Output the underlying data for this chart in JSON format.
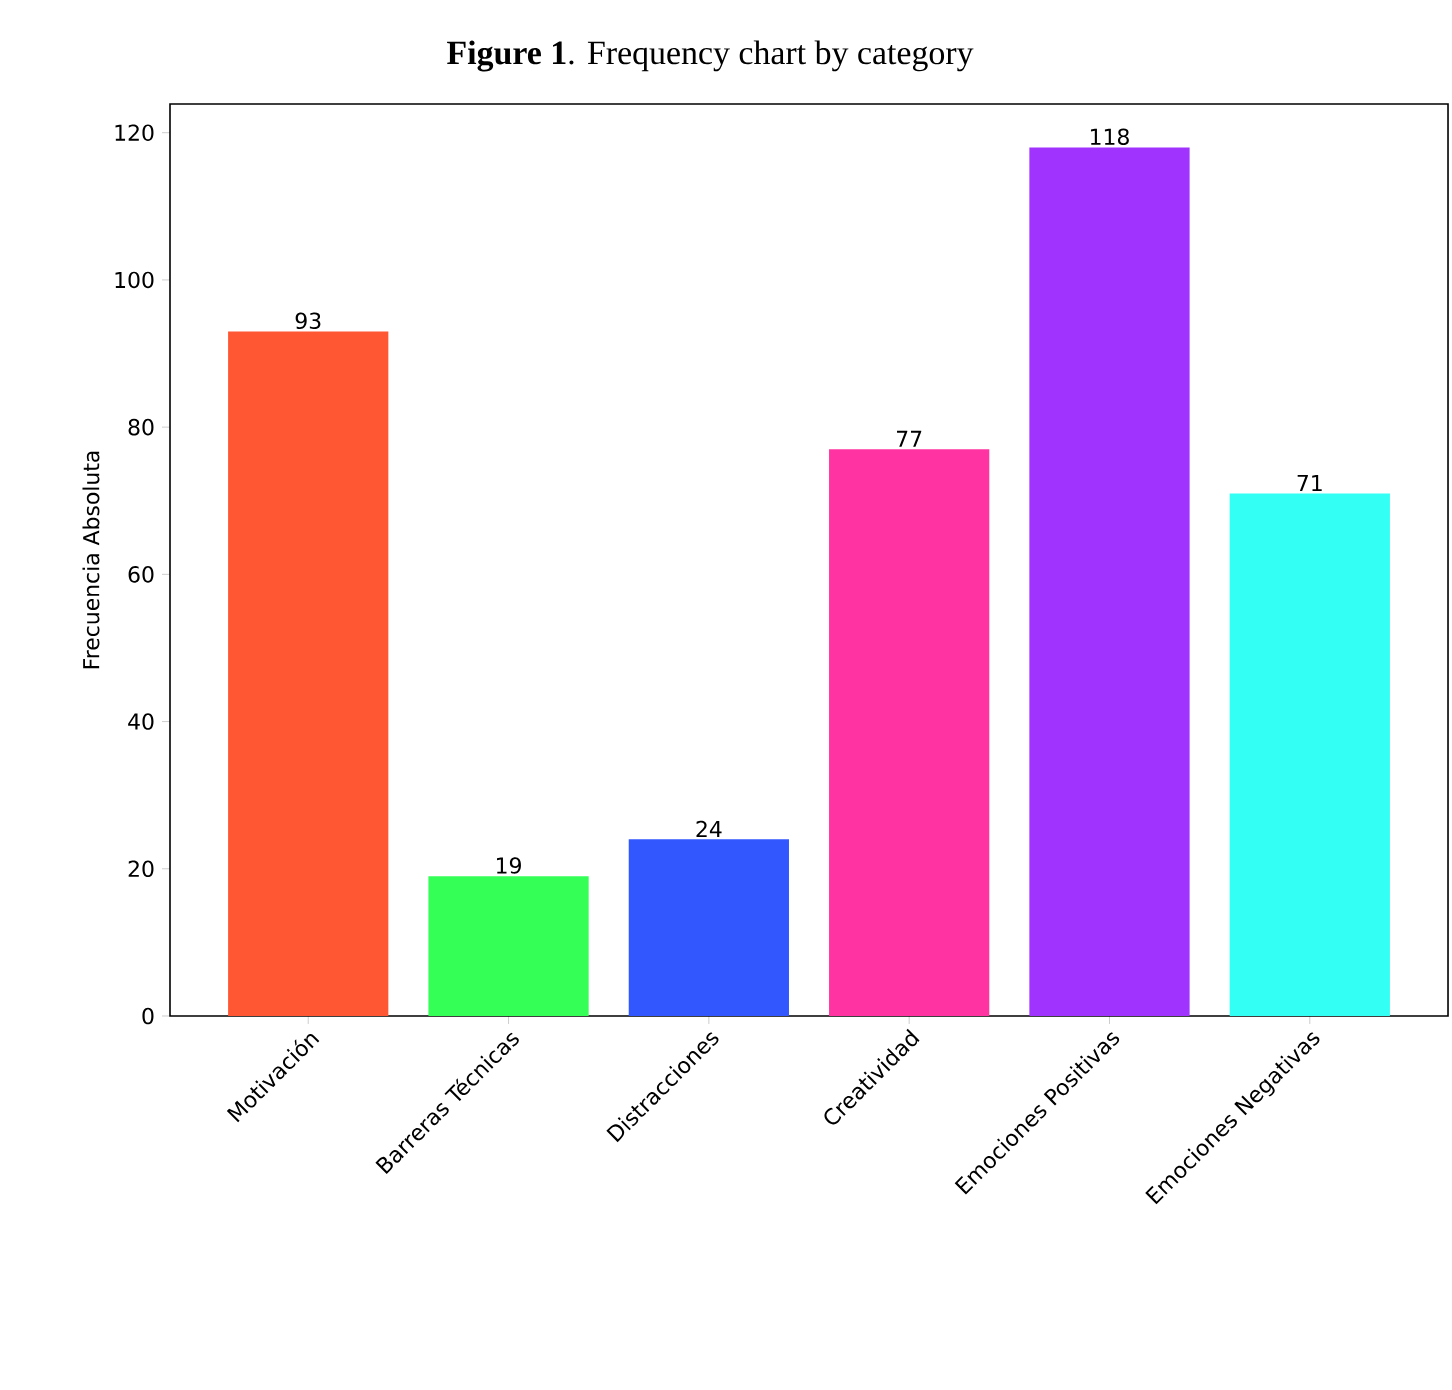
{
  "chart_data": {
    "type": "bar",
    "title": "**Figure 1**. Frequency chart by category",
    "ylabel": "Frecuencia Absoluta",
    "categories": [
      "Motivación",
      "Barreras Técnicas",
      "Distracciones",
      "Creatividad",
      "Emociones Positivas",
      "Emociones Negativas"
    ],
    "values": [
      93,
      19,
      24,
      77,
      118,
      71
    ],
    "colors": [
      "#ff5733",
      "#33ff57",
      "#3357ff",
      "#ff33a1",
      "#a133ff",
      "#33fff5"
    ],
    "ylim": [
      0,
      123.9
    ],
    "yticks": [
      0,
      20,
      40,
      60,
      80,
      100,
      120
    ],
    "grid": false,
    "data_labels": true
  }
}
